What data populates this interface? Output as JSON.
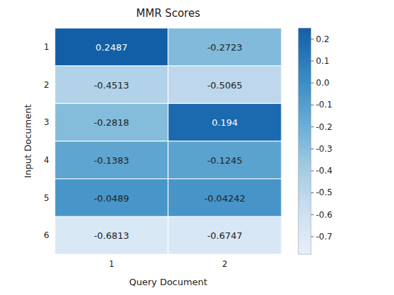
{
  "chart_data": {
    "type": "heatmap",
    "title": "MMR Scores",
    "x_label": "Query Document",
    "y_label": "Input Document",
    "x_categories": [
      "1",
      "2"
    ],
    "y_categories": [
      "1",
      "2",
      "3",
      "4",
      "5",
      "6"
    ],
    "cells": [
      [
        0.2487,
        -0.2723
      ],
      [
        -0.4513,
        -0.5065
      ],
      [
        -0.2818,
        0.194
      ],
      [
        -0.1383,
        -0.1245
      ],
      [
        -0.0489,
        -0.04242
      ],
      [
        -0.6813,
        -0.6747
      ]
    ],
    "color": "Blues",
    "color_range": [
      -0.78,
      0.25
    ],
    "color_ticks": [
      0.2,
      0.1,
      {
        "value": 0.0,
        "label": "0.0"
      },
      -0.1,
      -0.2,
      -0.3,
      -0.4,
      -0.5,
      -0.6,
      -0.7
    ],
    "data_labels": true
  }
}
